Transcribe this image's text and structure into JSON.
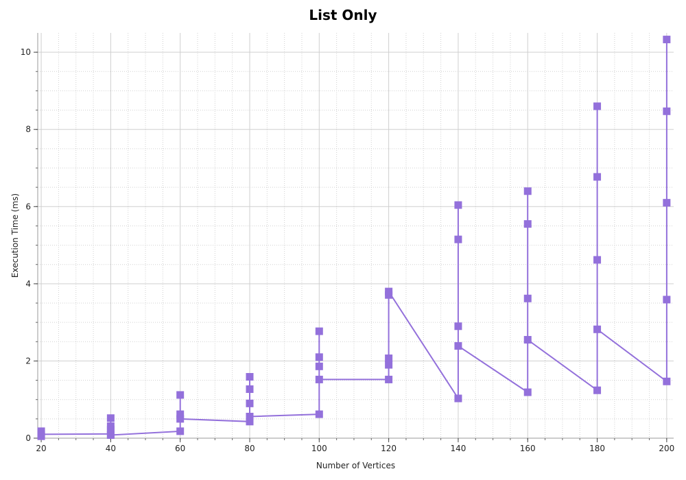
{
  "chart_data": {
    "type": "line",
    "title": "List Only",
    "xlabel": "Number of Vertices",
    "ylabel": "Execution Time (ms)",
    "xlim": [
      19,
      202
    ],
    "ylim": [
      0,
      10.5
    ],
    "x_ticks": [
      20,
      40,
      60,
      80,
      100,
      120,
      140,
      160,
      180,
      200
    ],
    "y_ticks": [
      0,
      2,
      4,
      6,
      8,
      10
    ],
    "grid": true,
    "minor_grid": true,
    "legend": "none",
    "series": [
      {
        "color": "#9370DB",
        "marker": "square",
        "points": [
          [
            20,
            0.18
          ],
          [
            20,
            0.05
          ],
          [
            20,
            0.1
          ],
          [
            40,
            0.11
          ],
          [
            40,
            0.52
          ],
          [
            40,
            0.31
          ],
          [
            40,
            0.22
          ],
          [
            40,
            0.08
          ],
          [
            60,
            0.18
          ],
          [
            60,
            1.12
          ],
          [
            60,
            0.62
          ],
          [
            60,
            0.5
          ],
          [
            80,
            0.43
          ],
          [
            80,
            1.59
          ],
          [
            80,
            1.27
          ],
          [
            80,
            0.9
          ],
          [
            80,
            0.56
          ],
          [
            100,
            0.62
          ],
          [
            100,
            2.77
          ],
          [
            100,
            2.1
          ],
          [
            100,
            1.86
          ],
          [
            100,
            1.52
          ],
          [
            120,
            1.52
          ],
          [
            120,
            1.9
          ],
          [
            120,
            2.07
          ],
          [
            120,
            3.71
          ],
          [
            120,
            3.8
          ],
          [
            140,
            1.03
          ],
          [
            140,
            6.04
          ],
          [
            140,
            5.15
          ],
          [
            140,
            2.9
          ],
          [
            140,
            2.39
          ],
          [
            160,
            1.19
          ],
          [
            160,
            6.4
          ],
          [
            160,
            5.55
          ],
          [
            160,
            3.62
          ],
          [
            160,
            2.55
          ],
          [
            180,
            1.24
          ],
          [
            180,
            8.6
          ],
          [
            180,
            6.77
          ],
          [
            180,
            4.62
          ],
          [
            180,
            2.82
          ],
          [
            200,
            1.47
          ],
          [
            200,
            10.33
          ],
          [
            200,
            8.47
          ],
          [
            200,
            6.1
          ],
          [
            200,
            3.59
          ]
        ]
      }
    ]
  }
}
